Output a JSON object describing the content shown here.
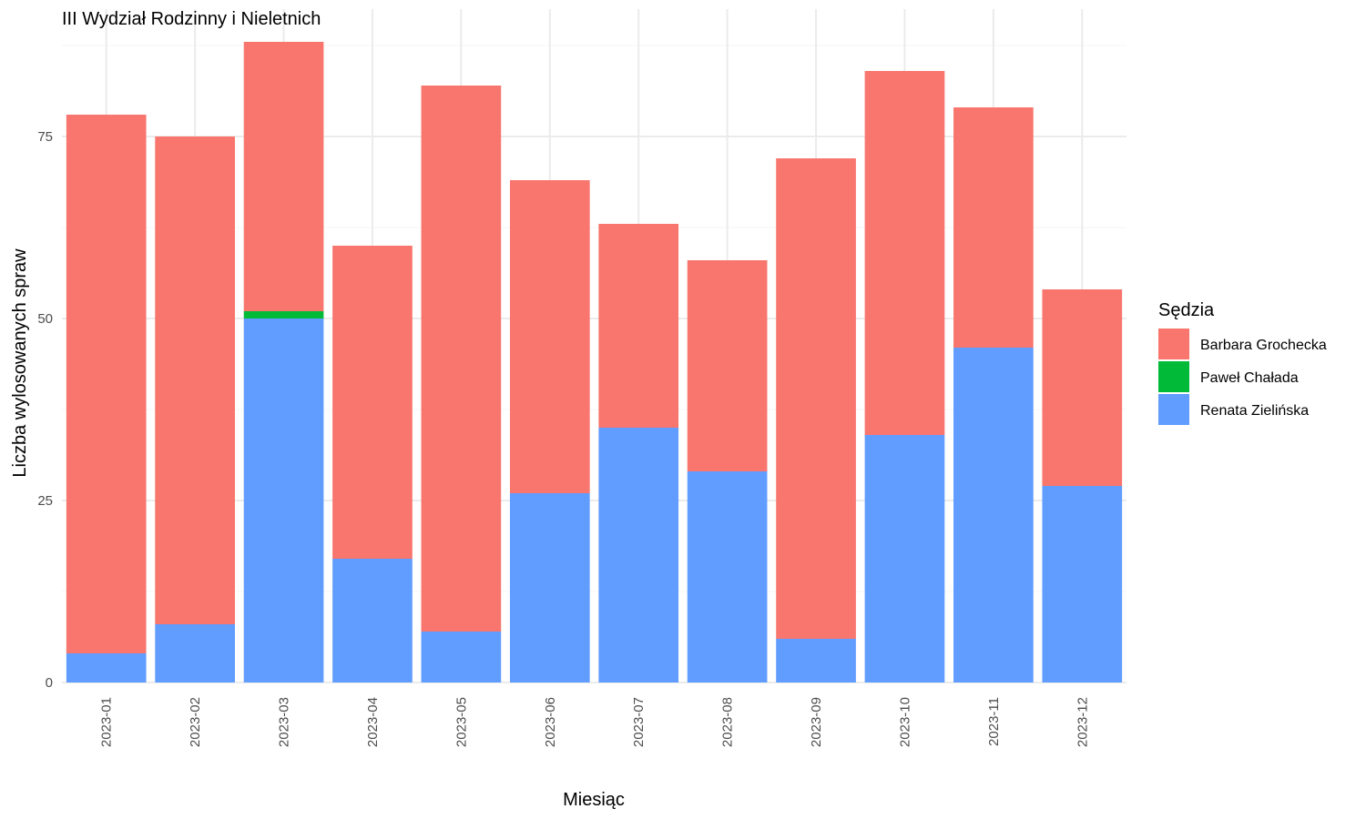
{
  "chart_data": {
    "type": "bar",
    "stacked": true,
    "title": "III Wydział Rodzinny i Nieletnich",
    "xlabel": "Miesiąc",
    "ylabel": "Liczba wylosowanych spraw",
    "ylim": [
      0,
      90
    ],
    "yticks": [
      0,
      25,
      50,
      75
    ],
    "grid": true,
    "legend_title": "Sędzia",
    "legend_position": "right",
    "categories": [
      "2023-01",
      "2023-02",
      "2023-03",
      "2023-04",
      "2023-05",
      "2023-06",
      "2023-07",
      "2023-08",
      "2023-09",
      "2023-10",
      "2023-11",
      "2023-12"
    ],
    "series": [
      {
        "name": "Renata Zielińska",
        "color": "#619cff",
        "values": [
          4,
          8,
          50,
          17,
          7,
          26,
          35,
          29,
          6,
          34,
          46,
          27
        ]
      },
      {
        "name": "Paweł Chałada",
        "color": "#00ba38",
        "values": [
          0,
          0,
          1,
          0,
          0,
          0,
          0,
          0,
          0,
          0,
          0,
          0
        ]
      },
      {
        "name": "Barbara Grochecka",
        "color": "#f8766d",
        "values": [
          74,
          67,
          37,
          43,
          75,
          43,
          28,
          29,
          66,
          50,
          33,
          27
        ]
      }
    ],
    "legend_order": [
      "Barbara Grochecka",
      "Paweł Chałada",
      "Renata Zielińska"
    ]
  }
}
